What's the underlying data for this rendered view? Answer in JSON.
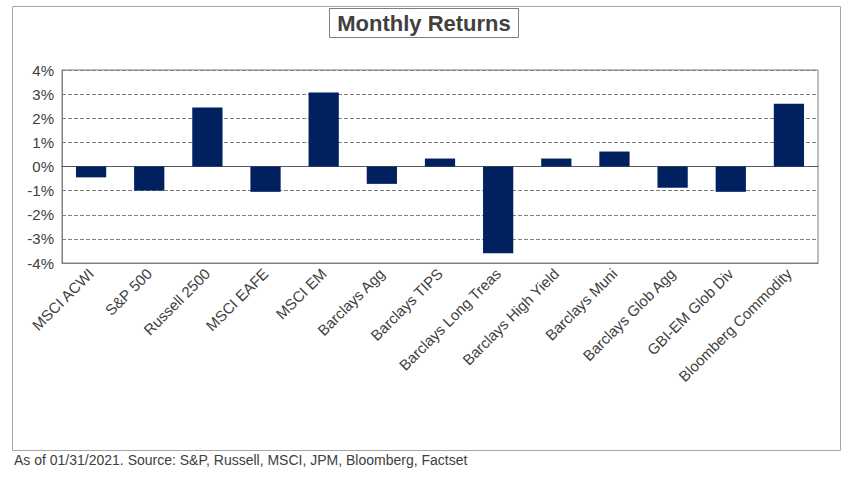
{
  "chart_data": {
    "type": "bar",
    "title": "Monthly Returns",
    "categories": [
      "MSCI ACWI",
      "S&P 500",
      "Russell 2500",
      "MSCI EAFE",
      "MSCI EM",
      "Barclays Agg",
      "Barclays TIPS",
      "Barclays Long Treas",
      "Barclays High Yield",
      "Barclays Muni",
      "Barclays Glob Agg",
      "GBI-EM Glob Div",
      "Bloomberg Commodity"
    ],
    "values": [
      -0.45,
      -1.0,
      2.45,
      -1.05,
      3.07,
      -0.72,
      0.33,
      -3.6,
      0.33,
      0.62,
      -0.88,
      -1.05,
      2.6
    ],
    "color": "#002060",
    "ylim": [
      -4,
      4
    ],
    "yticks": [
      {
        "value": -4,
        "label": "-4%"
      },
      {
        "value": -3,
        "label": "-3%"
      },
      {
        "value": -2,
        "label": "-2%"
      },
      {
        "value": -1,
        "label": "-1%"
      },
      {
        "value": 0,
        "label": "0%"
      },
      {
        "value": 1,
        "label": "1%"
      },
      {
        "value": 2,
        "label": "2%"
      },
      {
        "value": 3,
        "label": "3%"
      },
      {
        "value": 4,
        "label": "4%"
      }
    ],
    "grid": true,
    "annotations": [
      "As of 01/31/2021. Source: S&P, Russell, MSCI, JPM, Bloomberg, Factset"
    ]
  }
}
